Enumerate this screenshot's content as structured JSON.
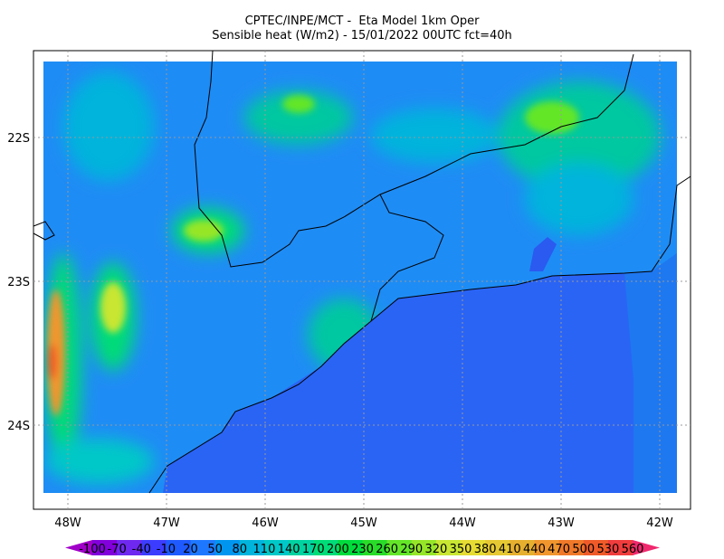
{
  "title": [
    "CPTEC/INPE/MCT -  Eta Model 1km Oper",
    "Sensible heat (W/m2) - 15/01/2022 00UTC fct=40h"
  ],
  "lat_labels": [
    "22S",
    "23S",
    "24S"
  ],
  "lon_labels": [
    "48W",
    "47W",
    "46W",
    "45W",
    "44W",
    "43W",
    "42W"
  ],
  "colorbar": {
    "levels": [
      -100,
      -70,
      -40,
      -10,
      20,
      50,
      80,
      110,
      140,
      170,
      200,
      230,
      260,
      290,
      320,
      350,
      380,
      410,
      440,
      470,
      500,
      530,
      560
    ],
    "colors": [
      "#a000c8",
      "#8200dc",
      "#6e28f0",
      "#3c3cff",
      "#1e5aff",
      "#1e78ff",
      "#0096f0",
      "#00b4dc",
      "#00c8c8",
      "#00d2a0",
      "#00dc78",
      "#00dc3c",
      "#28dc28",
      "#64e628",
      "#96e628",
      "#c8e632",
      "#e6dc32",
      "#e6c832",
      "#e6af2d",
      "#f0962d",
      "#f07828",
      "#f05a28",
      "#f03c3c",
      "#f0286e"
    ]
  }
}
